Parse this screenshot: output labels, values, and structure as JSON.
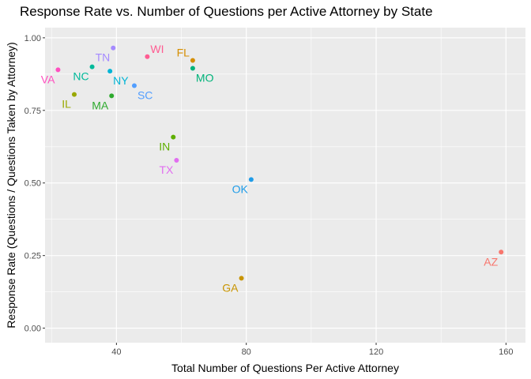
{
  "chart_data": {
    "type": "scatter",
    "title": "Response Rate vs. Number of Questions per Active Attorney by State",
    "xlabel": "Total Number of Questions Per Active Attorney",
    "ylabel": "Response Rate (Questions / Questions Taken by Attorney)",
    "xlim": [
      18,
      166
    ],
    "ylim": [
      -0.05,
      1.035
    ],
    "x_ticks": [
      40,
      80,
      120,
      160
    ],
    "x_tick_labels": [
      "40",
      "80",
      "120",
      "160"
    ],
    "y_ticks": [
      0,
      0.25,
      0.5,
      0.75,
      1.0
    ],
    "y_tick_labels": [
      "0.00",
      "0.25",
      "0.50",
      "0.75",
      "1.00"
    ],
    "x_minor": [
      20,
      60,
      100,
      140
    ],
    "y_minor": [
      0.125,
      0.375,
      0.625,
      0.875
    ],
    "grid": true,
    "legend": "none",
    "points": [
      {
        "label": "VA",
        "x": 22.0,
        "y": 0.89,
        "color": "#FF4FBF",
        "label_pos": "lower-left"
      },
      {
        "label": "IL",
        "x": 27.0,
        "y": 0.805,
        "color": "#99A800",
        "label_pos": "lower-left"
      },
      {
        "label": "NC",
        "x": 32.5,
        "y": 0.9,
        "color": "#00B99A",
        "label_pos": "lower-left"
      },
      {
        "label": "TN",
        "x": 39.0,
        "y": 0.965,
        "color": "#A58AFF",
        "label_pos": "lower-left"
      },
      {
        "label": "NY",
        "x": 38.0,
        "y": 0.885,
        "color": "#00B5D6",
        "label_pos": "lower-right"
      },
      {
        "label": "MA",
        "x": 38.5,
        "y": 0.8,
        "color": "#2EAA2E",
        "label_pos": "lower-left"
      },
      {
        "label": "SC",
        "x": 45.5,
        "y": 0.835,
        "color": "#529EFF",
        "label_pos": "lower-right"
      },
      {
        "label": "WI",
        "x": 49.5,
        "y": 0.935,
        "color": "#FF5C92",
        "label_pos": "upper-right"
      },
      {
        "label": "FL",
        "x": 63.5,
        "y": 0.922,
        "color": "#D58E00",
        "label_pos": "upper-left"
      },
      {
        "label": "MO",
        "x": 63.5,
        "y": 0.895,
        "color": "#00B37A",
        "label_pos": "lower-right"
      },
      {
        "label": "IN",
        "x": 57.5,
        "y": 0.658,
        "color": "#5EAE00",
        "label_pos": "lower-left"
      },
      {
        "label": "TX",
        "x": 58.5,
        "y": 0.578,
        "color": "#E16EF0",
        "label_pos": "lower-left"
      },
      {
        "label": "OK",
        "x": 81.5,
        "y": 0.512,
        "color": "#1F9CE8",
        "label_pos": "lower-left"
      },
      {
        "label": "GA",
        "x": 78.5,
        "y": 0.172,
        "color": "#C89400",
        "label_pos": "lower-left"
      },
      {
        "label": "AZ",
        "x": 158.5,
        "y": 0.262,
        "color": "#F8766D",
        "label_pos": "lower-left"
      }
    ]
  }
}
